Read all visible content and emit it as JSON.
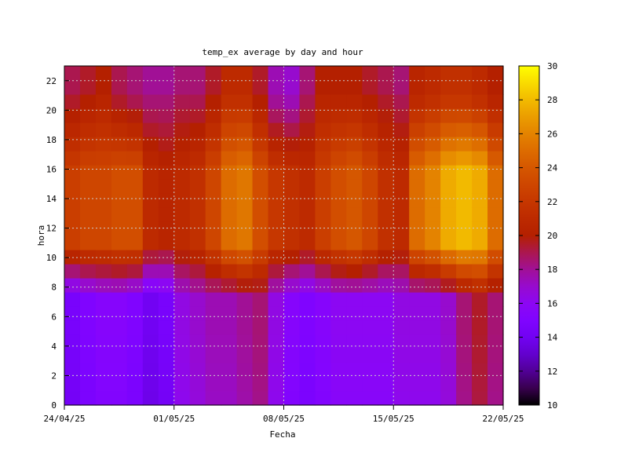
{
  "chart_data": {
    "type": "heatmap",
    "title": "temp_ex average by day and hour",
    "xlabel": "Fecha",
    "ylabel": "hora",
    "x_tick_labels": [
      "24/04/25",
      "01/05/25",
      "08/05/25",
      "15/05/25",
      "22/05/25"
    ],
    "x_range_days": [
      "24/04/25",
      "22/05/25"
    ],
    "y_ticks": [
      0,
      2,
      4,
      6,
      8,
      10,
      12,
      14,
      16,
      18,
      20,
      22
    ],
    "ylim": [
      0,
      23
    ],
    "colorbar": {
      "min": 10,
      "max": 30,
      "ticks": [
        10,
        12,
        14,
        16,
        18,
        20,
        22,
        24,
        26,
        28,
        30
      ]
    },
    "grid": true,
    "days": [
      "24/04/25",
      "25/04/25",
      "26/04/25",
      "27/04/25",
      "28/04/25",
      "29/04/25",
      "30/04/25",
      "01/05/25",
      "02/05/25",
      "03/05/25",
      "04/05/25",
      "05/05/25",
      "06/05/25",
      "07/05/25",
      "08/05/25",
      "09/05/25",
      "10/05/25",
      "11/05/25",
      "12/05/25",
      "13/05/25",
      "14/05/25",
      "15/05/25",
      "16/05/25",
      "17/05/25",
      "18/05/25",
      "19/05/25",
      "20/05/25",
      "21/05/25"
    ],
    "hours": [
      0,
      1,
      2,
      3,
      4,
      5,
      6,
      7,
      8,
      9,
      10,
      11,
      12,
      13,
      14,
      15,
      16,
      17,
      18,
      19,
      20,
      21,
      22,
      23
    ],
    "day_profiles": [
      {
        "night": 14.5,
        "peak": 22.5,
        "evening": 19.5
      },
      {
        "night": 15.0,
        "peak": 23.0,
        "evening": 20.0
      },
      {
        "night": 15.5,
        "peak": 23.0,
        "evening": 20.5
      },
      {
        "night": 15.5,
        "peak": 23.5,
        "evening": 19.5
      },
      {
        "night": 15.0,
        "peak": 23.5,
        "evening": 19.0
      },
      {
        "night": 14.0,
        "peak": 21.0,
        "evening": 18.5
      },
      {
        "night": 14.5,
        "peak": 20.5,
        "evening": 18.5
      },
      {
        "night": 16.5,
        "peak": 21.0,
        "evening": 19.0
      },
      {
        "night": 17.0,
        "peak": 21.5,
        "evening": 19.0
      },
      {
        "night": 17.5,
        "peak": 23.0,
        "evening": 20.0
      },
      {
        "night": 17.5,
        "peak": 25.0,
        "evening": 21.5
      },
      {
        "night": 18.0,
        "peak": 25.5,
        "evening": 21.5
      },
      {
        "night": 18.5,
        "peak": 23.5,
        "evening": 20.0
      },
      {
        "night": 16.5,
        "peak": 22.0,
        "evening": 18.0
      },
      {
        "night": 15.5,
        "peak": 21.5,
        "evening": 17.5
      },
      {
        "night": 15.0,
        "peak": 21.0,
        "evening": 19.0
      },
      {
        "night": 15.5,
        "peak": 22.5,
        "evening": 20.5
      },
      {
        "night": 16.0,
        "peak": 23.5,
        "evening": 20.5
      },
      {
        "night": 16.0,
        "peak": 24.0,
        "evening": 20.5
      },
      {
        "night": 16.0,
        "peak": 23.0,
        "evening": 20.0
      },
      {
        "night": 16.0,
        "peak": 21.5,
        "evening": 19.5
      },
      {
        "night": 16.5,
        "peak": 21.0,
        "evening": 19.0
      },
      {
        "night": 16.5,
        "peak": 25.0,
        "evening": 21.0
      },
      {
        "night": 16.5,
        "peak": 26.0,
        "evening": 21.5
      },
      {
        "night": 17.0,
        "peak": 27.5,
        "evening": 22.0
      },
      {
        "night": 18.5,
        "peak": 28.0,
        "evening": 22.0
      },
      {
        "night": 19.5,
        "peak": 27.5,
        "evening": 21.5
      },
      {
        "night": 18.5,
        "peak": 25.0,
        "evening": 20.5
      }
    ]
  }
}
